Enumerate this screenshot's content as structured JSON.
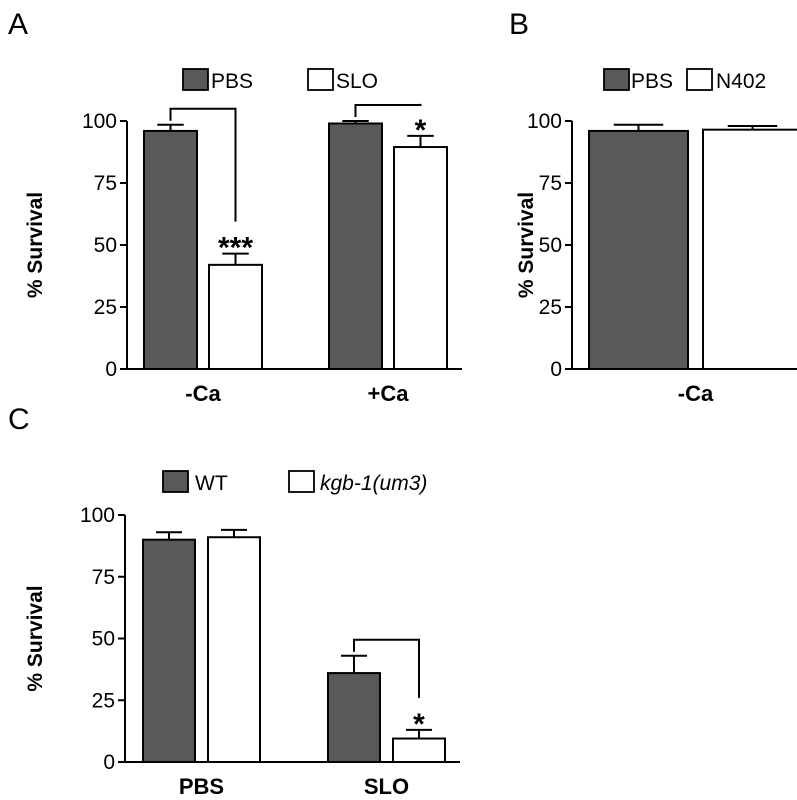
{
  "chart_data": [
    {
      "panel": "A",
      "type": "bar",
      "ylabel": "% Survival",
      "ylim": [
        0,
        100
      ],
      "yticks": [
        "0",
        "25",
        "50",
        "75",
        "100"
      ],
      "categories": [
        "-Ca",
        "+Ca"
      ],
      "series": [
        {
          "name": "PBS",
          "color": "#595959",
          "values": [
            96,
            99
          ],
          "errors": [
            2.5,
            1
          ]
        },
        {
          "name": "SLO",
          "color": "#ffffff",
          "values": [
            42,
            89.5
          ],
          "errors": [
            4.5,
            4.5
          ]
        }
      ],
      "significance": [
        {
          "category": 0,
          "stars": "***"
        },
        {
          "category": 1,
          "stars": "*"
        }
      ],
      "legend": "top"
    },
    {
      "panel": "B",
      "type": "bar",
      "ylabel": "% Survival",
      "ylim": [
        0,
        100
      ],
      "yticks": [
        "0",
        "25",
        "50",
        "75",
        "100"
      ],
      "categories": [
        "-Ca"
      ],
      "series": [
        {
          "name": "PBS",
          "color": "#595959",
          "values": [
            96
          ],
          "errors": [
            2.5
          ]
        },
        {
          "name": "N402",
          "color": "#ffffff",
          "values": [
            96.5
          ],
          "errors": [
            1.5
          ]
        }
      ],
      "significance": [],
      "legend": "top"
    },
    {
      "panel": "C",
      "type": "bar",
      "ylabel": "% Survival",
      "ylim": [
        0,
        100
      ],
      "yticks": [
        "0",
        "25",
        "50",
        "75",
        "100"
      ],
      "categories": [
        "PBS",
        "SLO"
      ],
      "series": [
        {
          "name": "WT",
          "color": "#595959",
          "values": [
            90,
            36
          ],
          "errors": [
            3,
            7
          ]
        },
        {
          "name": "kgb-1(um3)",
          "color": "#ffffff",
          "italic": true,
          "values": [
            91,
            9.5
          ],
          "errors": [
            3,
            3.5
          ]
        }
      ],
      "significance": [
        {
          "category": 1,
          "stars": "*"
        }
      ],
      "legend": "top"
    }
  ]
}
